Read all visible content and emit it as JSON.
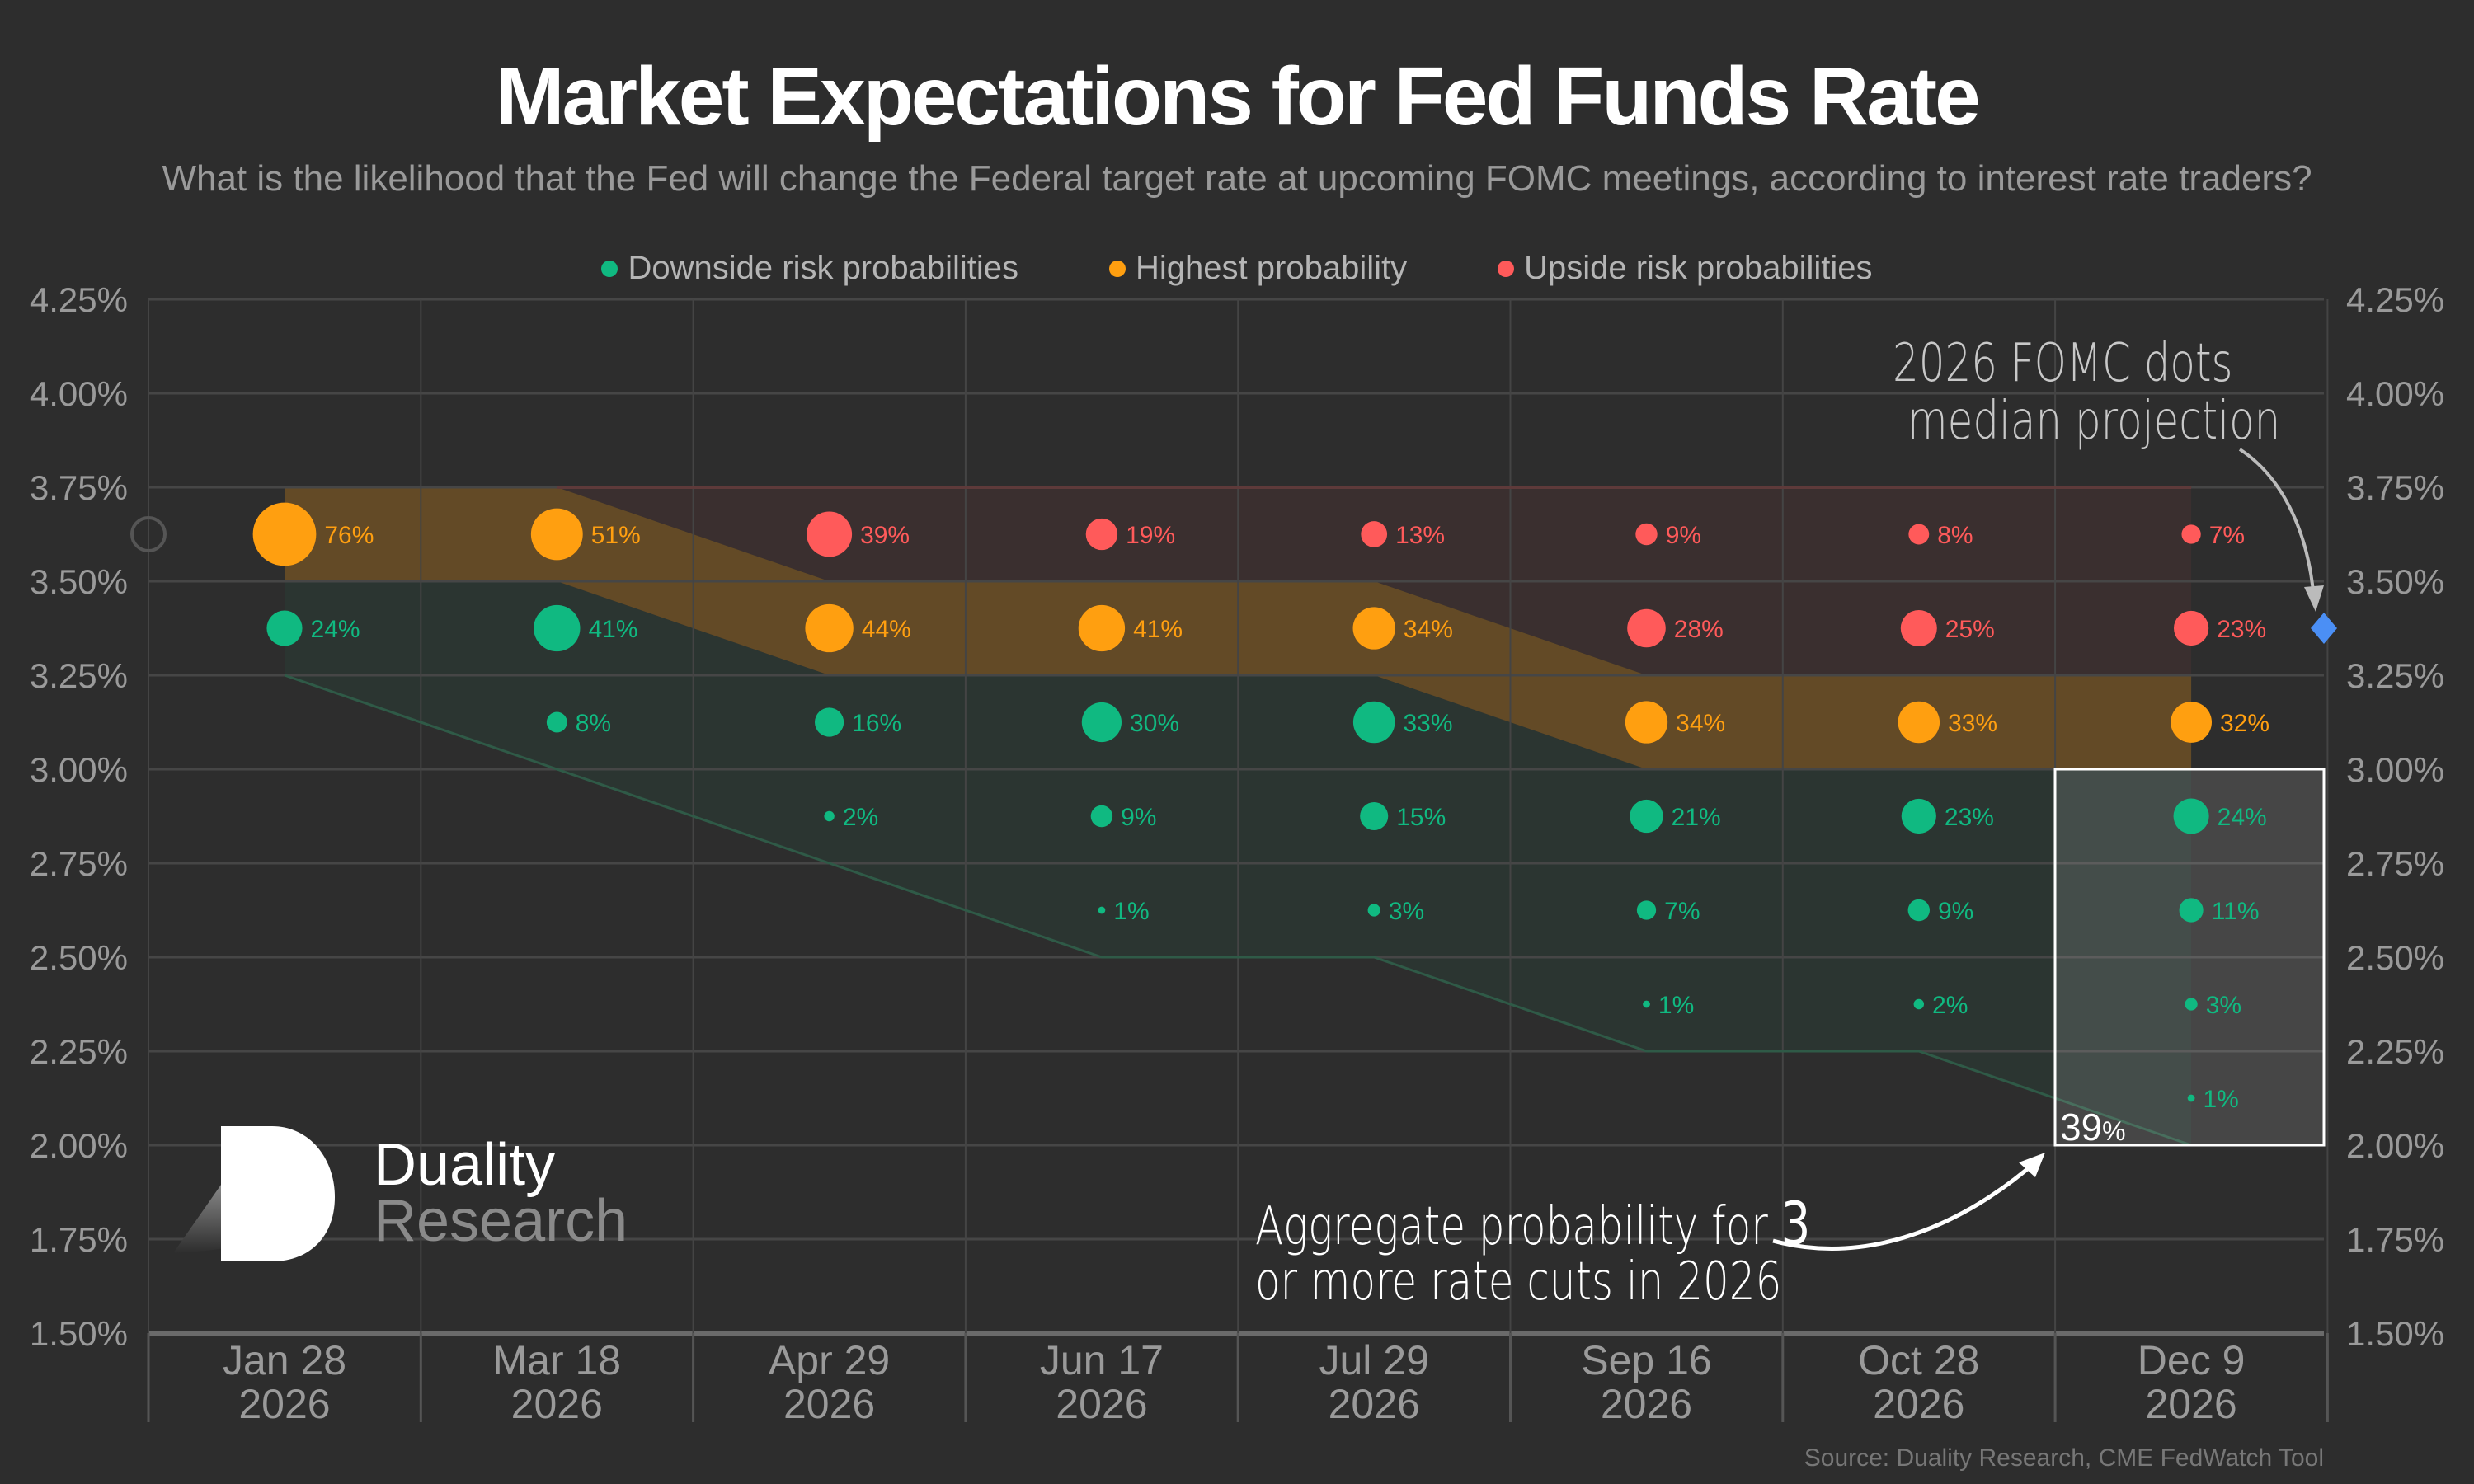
{
  "header": {
    "title": "Market Expectations for Fed Funds Rate",
    "subtitle": "What is the likelihood that the Fed will change the Federal target rate at upcoming FOMC meetings, according to interest rate traders?"
  },
  "legend": [
    {
      "label": "Downside risk probabilities",
      "color": "#10b981"
    },
    {
      "label": "Highest probability",
      "color": "#ff9f10"
    },
    {
      "label": "Upside risk probabilities",
      "color": "#ff5a5a"
    }
  ],
  "annotations": {
    "fomc_line1": "2026 FOMC dots",
    "fomc_line2": "median projection",
    "agg_line1_prefix": "Aggregate probability for ",
    "agg_line1_number": "3",
    "agg_line2": "or more rate cuts in 2026",
    "agg_value": "39",
    "agg_value_unit": "%"
  },
  "logo": {
    "line1": "Duality",
    "line2": "Research"
  },
  "source": "Source: Duality Research, CME FedWatch Tool",
  "chart_data": {
    "type": "scatter",
    "title": "Market Expectations for Fed Funds Rate",
    "ylim": [
      1.5,
      4.25
    ],
    "y_ticks": [
      "4.25%",
      "4.00%",
      "3.75%",
      "3.50%",
      "3.25%",
      "3.00%",
      "2.75%",
      "2.50%",
      "2.25%",
      "2.00%",
      "1.75%",
      "1.50%"
    ],
    "y_tick_values": [
      4.25,
      4.0,
      3.75,
      3.5,
      3.25,
      3.0,
      2.75,
      2.5,
      2.25,
      2.0,
      1.75,
      1.5
    ],
    "current_rate_bin_low": 3.5,
    "fomc_median_projection": 3.375,
    "aggregate_box": {
      "meeting_index": 7,
      "bin_low": 2.0,
      "bin_high": 3.0,
      "value_pct": 39
    },
    "colors": {
      "down": "#10b981",
      "high": "#ff9f10",
      "up": "#ff5a5a",
      "projection": "#4b8ff5"
    },
    "meetings": [
      {
        "date": "Jan 28",
        "year": "2026",
        "bins": [
          {
            "low": 3.5,
            "p": 76,
            "c": "high"
          },
          {
            "low": 3.25,
            "p": 24,
            "c": "down"
          }
        ]
      },
      {
        "date": "Mar 18",
        "year": "2026",
        "bins": [
          {
            "low": 3.5,
            "p": 51,
            "c": "high"
          },
          {
            "low": 3.25,
            "p": 41,
            "c": "down"
          },
          {
            "low": 3.0,
            "p": 8,
            "c": "down"
          }
        ]
      },
      {
        "date": "Apr 29",
        "year": "2026",
        "bins": [
          {
            "low": 3.5,
            "p": 39,
            "c": "up"
          },
          {
            "low": 3.25,
            "p": 44,
            "c": "high"
          },
          {
            "low": 3.0,
            "p": 16,
            "c": "down"
          },
          {
            "low": 2.75,
            "p": 2,
            "c": "down"
          }
        ]
      },
      {
        "date": "Jun 17",
        "year": "2026",
        "bins": [
          {
            "low": 3.5,
            "p": 19,
            "c": "up"
          },
          {
            "low": 3.25,
            "p": 41,
            "c": "high"
          },
          {
            "low": 3.0,
            "p": 30,
            "c": "down"
          },
          {
            "low": 2.75,
            "p": 9,
            "c": "down"
          },
          {
            "low": 2.5,
            "p": 1,
            "c": "down"
          }
        ]
      },
      {
        "date": "Jul 29",
        "year": "2026",
        "bins": [
          {
            "low": 3.5,
            "p": 13,
            "c": "up"
          },
          {
            "low": 3.25,
            "p": 34,
            "c": "high"
          },
          {
            "low": 3.0,
            "p": 33,
            "c": "down"
          },
          {
            "low": 2.75,
            "p": 15,
            "c": "down"
          },
          {
            "low": 2.5,
            "p": 3,
            "c": "down"
          }
        ]
      },
      {
        "date": "Sep 16",
        "year": "2026",
        "bins": [
          {
            "low": 3.5,
            "p": 9,
            "c": "up"
          },
          {
            "low": 3.25,
            "p": 28,
            "c": "up"
          },
          {
            "low": 3.0,
            "p": 34,
            "c": "high"
          },
          {
            "low": 2.75,
            "p": 21,
            "c": "down"
          },
          {
            "low": 2.5,
            "p": 7,
            "c": "down"
          },
          {
            "low": 2.25,
            "p": 1,
            "c": "down"
          }
        ]
      },
      {
        "date": "Oct 28",
        "year": "2026",
        "bins": [
          {
            "low": 3.5,
            "p": 8,
            "c": "up"
          },
          {
            "low": 3.25,
            "p": 25,
            "c": "up"
          },
          {
            "low": 3.0,
            "p": 33,
            "c": "high"
          },
          {
            "low": 2.75,
            "p": 23,
            "c": "down"
          },
          {
            "low": 2.5,
            "p": 9,
            "c": "down"
          },
          {
            "low": 2.25,
            "p": 2,
            "c": "down"
          }
        ]
      },
      {
        "date": "Dec 9",
        "year": "2026",
        "bins": [
          {
            "low": 3.5,
            "p": 7,
            "c": "up"
          },
          {
            "low": 3.25,
            "p": 23,
            "c": "up"
          },
          {
            "low": 3.0,
            "p": 32,
            "c": "high"
          },
          {
            "low": 2.75,
            "p": 24,
            "c": "down"
          },
          {
            "low": 2.5,
            "p": 11,
            "c": "down"
          },
          {
            "low": 2.25,
            "p": 3,
            "c": "down"
          },
          {
            "low": 2.0,
            "p": 1,
            "c": "down"
          }
        ]
      }
    ]
  }
}
